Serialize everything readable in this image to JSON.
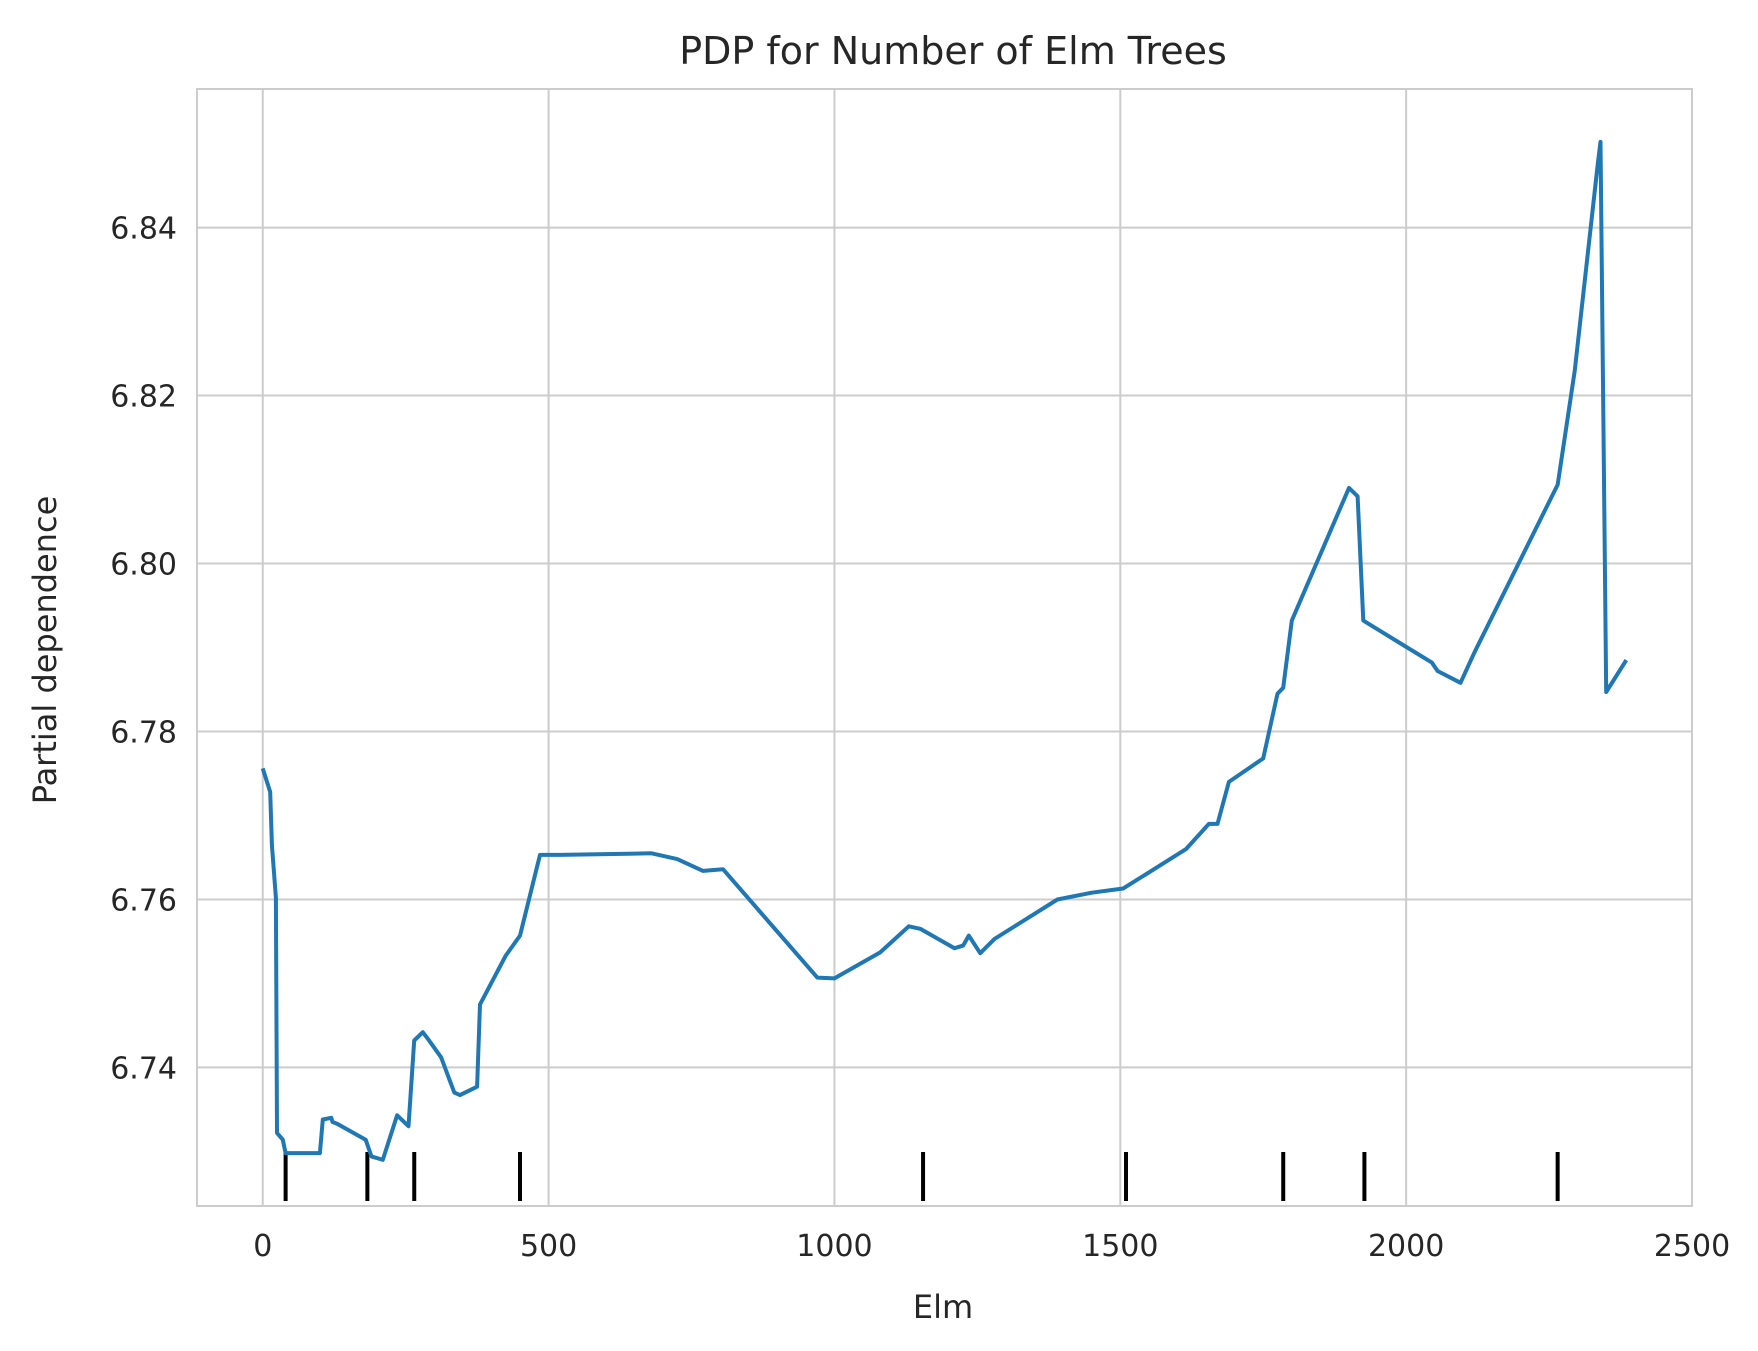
{
  "chart_data": {
    "type": "line",
    "title": "PDP for Number of Elm Trees",
    "xlabel": "Elm",
    "ylabel": "Partial dependence",
    "xlim": [
      -115,
      2500
    ],
    "ylim": [
      6.7235,
      6.8565
    ],
    "grid": true,
    "legend": "none",
    "line_color": "#1f77b4",
    "rug_color": "#000000",
    "x_ticks": [
      0,
      500,
      1000,
      1500,
      2000,
      2500
    ],
    "x_tick_labels": [
      "0",
      "500",
      "1000",
      "1500",
      "2000",
      "2500"
    ],
    "y_ticks": [
      6.74,
      6.76,
      6.78,
      6.8,
      6.82,
      6.84
    ],
    "y_tick_labels": [
      "6.74",
      "6.76",
      "6.78",
      "6.80",
      "6.82",
      "6.84"
    ],
    "rug_deciles": [
      40,
      183,
      265,
      450,
      1155,
      1510,
      1785,
      1927,
      2265
    ],
    "series": [
      {
        "x": [
          0,
          13,
          16,
          23,
          25,
          35,
          40,
          60,
          100,
          105,
          120,
          122,
          130,
          180,
          190,
          210,
          235,
          255,
          265,
          280,
          290,
          312,
          335,
          345,
          375,
          380,
          425,
          450,
          485,
          520,
          680,
          725,
          770,
          805,
          970,
          1000,
          1080,
          1130,
          1150,
          1210,
          1225,
          1235,
          1255,
          1280,
          1390,
          1450,
          1505,
          1615,
          1655,
          1670,
          1690,
          1750,
          1775,
          1785,
          1800,
          1900,
          1915,
          1925,
          2045,
          2055,
          2095,
          2120,
          2265,
          2295,
          2335,
          2340,
          2350,
          2385
        ],
        "y": [
          6.7756,
          6.7728,
          6.7665,
          6.7602,
          6.7322,
          6.7314,
          6.7298,
          6.7298,
          6.7298,
          6.7338,
          6.734,
          6.7335,
          6.7333,
          6.7314,
          6.7294,
          6.729,
          6.7343,
          6.733,
          6.7432,
          6.7442,
          6.7433,
          6.7412,
          6.737,
          6.7367,
          6.7377,
          6.7475,
          6.7533,
          6.7557,
          6.7653,
          6.7653,
          6.7655,
          6.7648,
          6.7634,
          6.7636,
          6.7507,
          6.7506,
          6.7537,
          6.7568,
          6.7565,
          6.7542,
          6.7545,
          6.7557,
          6.7536,
          6.7553,
          6.76,
          6.7608,
          6.7613,
          6.766,
          6.769,
          6.769,
          6.774,
          6.7768,
          6.7845,
          6.7852,
          6.7932,
          6.809,
          6.808,
          6.7932,
          6.7882,
          6.7872,
          6.7858,
          6.7895,
          6.8094,
          6.823,
          6.8475,
          6.8502,
          6.7847,
          6.7885
        ]
      }
    ]
  }
}
